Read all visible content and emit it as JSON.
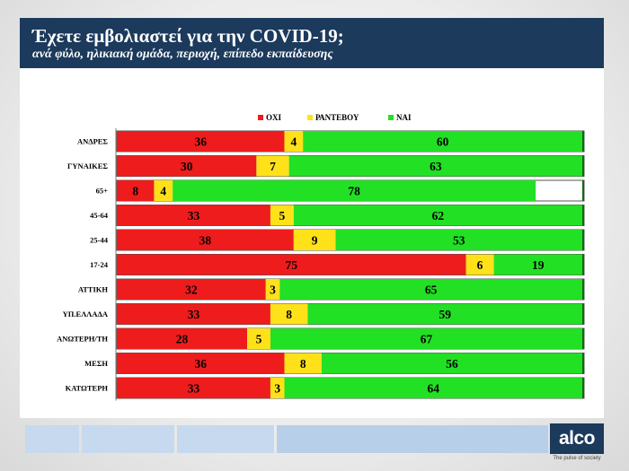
{
  "header": {
    "title": "Έχετε εμβολιαστεί για την COVID-19;",
    "subtitle": "ανά φύλο, ηλικιακή ομάδα, περιοχή, επίπεδο εκπαίδευσης"
  },
  "brand": {
    "logo_text": "alco",
    "tagline": "The pulse of society",
    "navy": "#1b3a5c"
  },
  "chart_data": {
    "type": "bar",
    "orientation": "horizontal",
    "stacked": true,
    "title": "Έχετε εμβολιαστεί για την COVID-19;",
    "xlim": [
      0,
      100
    ],
    "legend_position": "top-center",
    "categories": [
      "ΑΝΔΡΕΣ",
      "ΓΥΝΑΙΚΕΣ",
      "65+",
      "45-64",
      "25-44",
      "17-24",
      "ΑΤΤΙΚΗ",
      "ΥΠ.ΕΛΛΑΔΑ",
      "ΑΝΩΤΕΡΗ/ΤΗ",
      "ΜΕΣΗ",
      "ΚΑΤΩΤΕΡΗ"
    ],
    "series": [
      {
        "name": "ΟΧΙ",
        "color": "#ee1c1c",
        "values": [
          36,
          30,
          8,
          33,
          38,
          75,
          32,
          33,
          28,
          36,
          33
        ]
      },
      {
        "name": "ΡΑΝΤΕΒΟΥ",
        "color": "#ffe11a",
        "values": [
          4,
          7,
          4,
          5,
          9,
          6,
          3,
          8,
          5,
          8,
          3
        ]
      },
      {
        "name": "ΝΑΙ",
        "color": "#22e024",
        "values": [
          60,
          63,
          78,
          62,
          53,
          19,
          65,
          59,
          67,
          56,
          64
        ]
      }
    ]
  }
}
